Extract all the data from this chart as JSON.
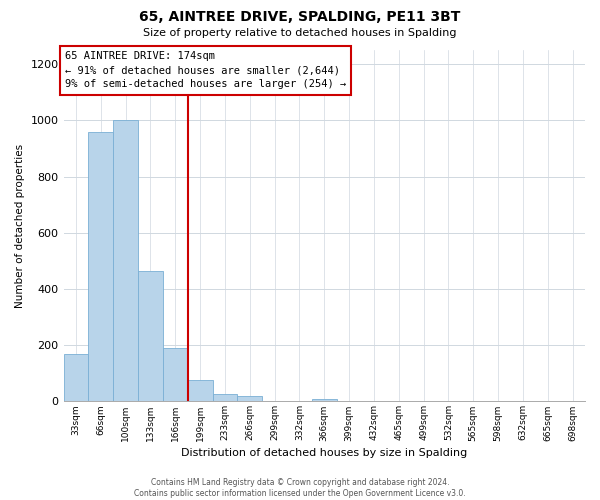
{
  "title": "65, AINTREE DRIVE, SPALDING, PE11 3BT",
  "subtitle": "Size of property relative to detached houses in Spalding",
  "xlabel": "Distribution of detached houses by size in Spalding",
  "ylabel": "Number of detached properties",
  "bar_color": "#b8d4ea",
  "bar_edge_color": "#7aafd4",
  "categories": [
    "33sqm",
    "66sqm",
    "100sqm",
    "133sqm",
    "166sqm",
    "199sqm",
    "233sqm",
    "266sqm",
    "299sqm",
    "332sqm",
    "366sqm",
    "399sqm",
    "432sqm",
    "465sqm",
    "499sqm",
    "532sqm",
    "565sqm",
    "598sqm",
    "632sqm",
    "665sqm",
    "698sqm"
  ],
  "values": [
    170,
    960,
    1000,
    465,
    190,
    75,
    25,
    20,
    0,
    0,
    10,
    0,
    0,
    0,
    0,
    0,
    0,
    0,
    0,
    0,
    0
  ],
  "ylim": [
    0,
    1250
  ],
  "yticks": [
    0,
    200,
    400,
    600,
    800,
    1000,
    1200
  ],
  "property_line_bin": 4.5,
  "property_line_color": "#cc0000",
  "annotation_line1": "65 AINTREE DRIVE: 174sqm",
  "annotation_line2": "← 91% of detached houses are smaller (2,644)",
  "annotation_line3": "9% of semi-detached houses are larger (254) →",
  "footer_text": "Contains HM Land Registry data © Crown copyright and database right 2024.\nContains public sector information licensed under the Open Government Licence v3.0.",
  "background_color": "#ffffff",
  "grid_color": "#d0d8e0"
}
